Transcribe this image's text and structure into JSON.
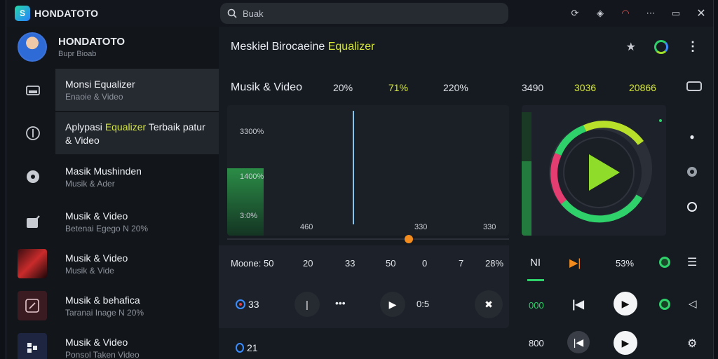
{
  "app": {
    "name": "HONDATOTO",
    "logo_letter": "S"
  },
  "search": {
    "placeholder": "Buak"
  },
  "titlebar_icons": [
    "refresh-icon",
    "shield-icon",
    "wifi-icon",
    "menu-dots-icon",
    "battery-icon",
    "close-icon"
  ],
  "profile": {
    "name": "HONDATOTO",
    "subtitle": "Bupr Bioab"
  },
  "sidebar": {
    "items": [
      {
        "title": "Monsi Equalizer",
        "subtitle": "Enaoie & Video"
      },
      {
        "title_pre": "Aplypasi ",
        "title_hl": "Equalizer",
        "title_post": " Terbaik patur",
        "subtitle": "& Video"
      },
      {
        "title": "Masik Mushinden",
        "subtitle": "Musik & Ader"
      },
      {
        "title": "Musik & Video",
        "subtitle": "Betenai Egego N 20%"
      },
      {
        "title": "Musik & Video",
        "subtitle": "Musik & Vide"
      },
      {
        "title": "Musik & behafica",
        "subtitle": "Taranai Inage N 20%"
      },
      {
        "title": "Musik & Video",
        "subtitle": "Ponsol Taken Video"
      }
    ]
  },
  "main": {
    "title_pre": "Meskiel Birocaeine ",
    "title_hl": "Equalizer",
    "eq": {
      "label": "Musik & Video",
      "values": [
        "20%",
        "71%",
        "220%",
        "3490",
        "3036",
        "20866"
      ],
      "y_labels": [
        "3300%",
        "1400%",
        "3:0%"
      ],
      "x_labels": [
        "460",
        "330",
        "330"
      ]
    },
    "mode": {
      "label": "Moone: 50",
      "values": [
        "20",
        "33",
        "50",
        "0",
        "7",
        "28%"
      ]
    },
    "playback": {
      "left_count": "33",
      "time": "0:5",
      "bottom_count": "21"
    },
    "right": {
      "ni": "NI",
      "percent": "53%",
      "count1": "000",
      "count2": "800"
    }
  },
  "colors": {
    "accent_green": "#2fd16a",
    "accent_yellow": "#d6e83a",
    "accent_orange": "#f28c1e",
    "bg": "#161a21"
  }
}
